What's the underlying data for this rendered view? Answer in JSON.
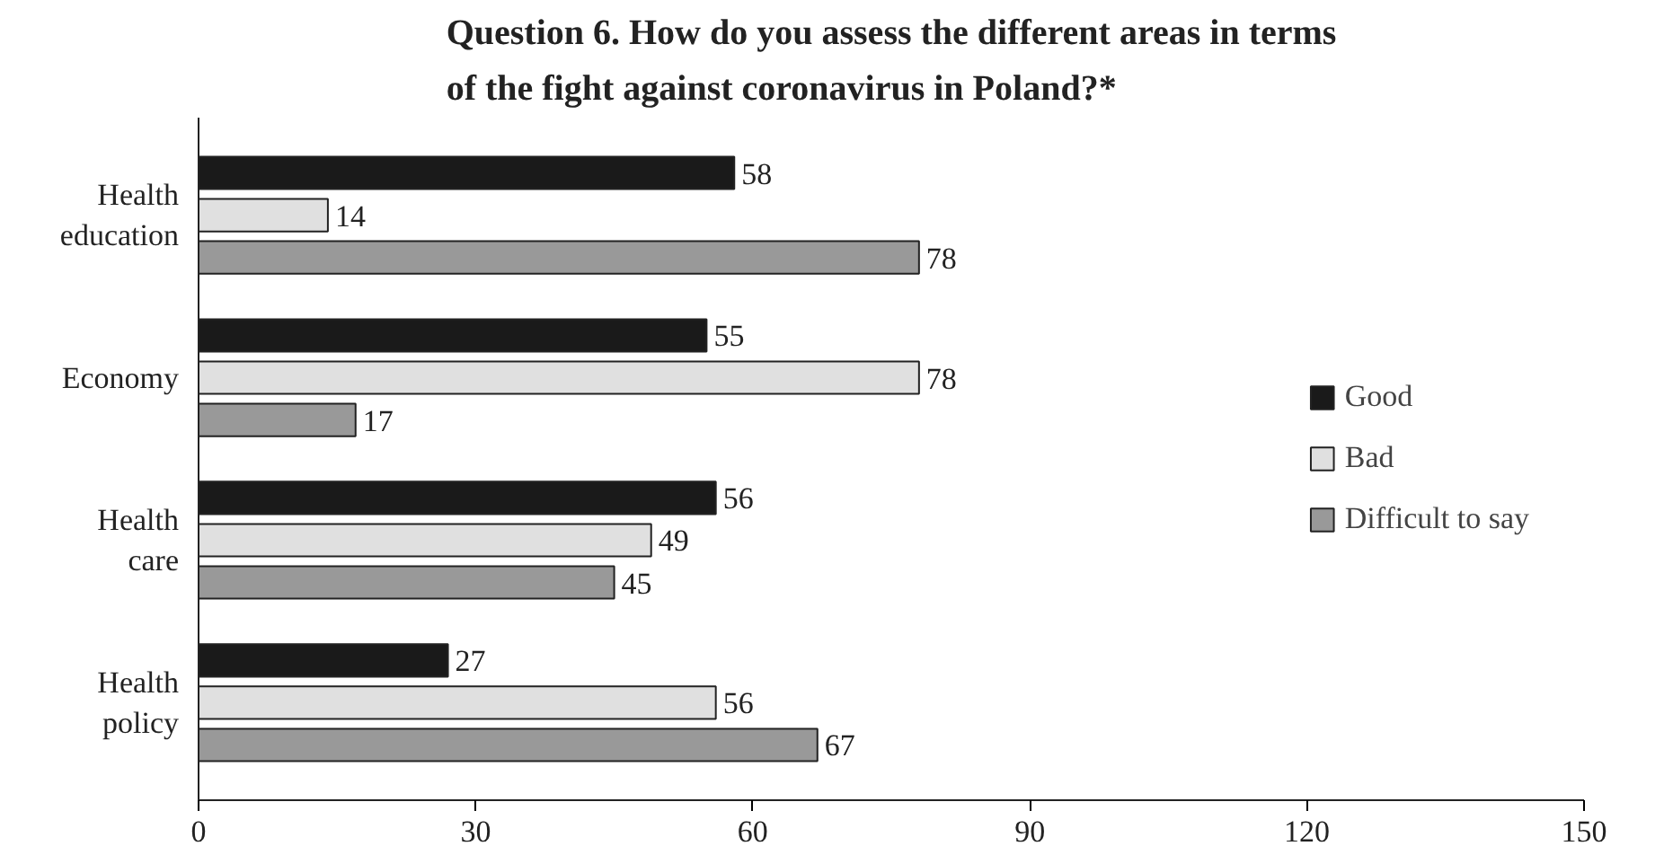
{
  "chart_data": {
    "type": "bar",
    "orientation": "horizontal",
    "title": "Question 6. How do you assess the different areas in terms\nof the fight against coronavirus in Poland?*",
    "categories": [
      "Health\neducation",
      "Economy",
      "Health\ncare",
      "Health\npolicy"
    ],
    "series": [
      {
        "name": "Good",
        "color": "#1a1a1a",
        "values": [
          58,
          55,
          56,
          27
        ]
      },
      {
        "name": "Bad",
        "color": "#e0e0e0",
        "values": [
          14,
          78,
          49,
          56
        ]
      },
      {
        "name": "Difficult to say",
        "color": "#999999",
        "values": [
          78,
          17,
          45,
          67
        ]
      }
    ],
    "xlim": [
      0,
      150
    ],
    "xticks": [
      0,
      30,
      60,
      90,
      120,
      150
    ],
    "data_labels": true,
    "grid": false,
    "legend": "right"
  }
}
